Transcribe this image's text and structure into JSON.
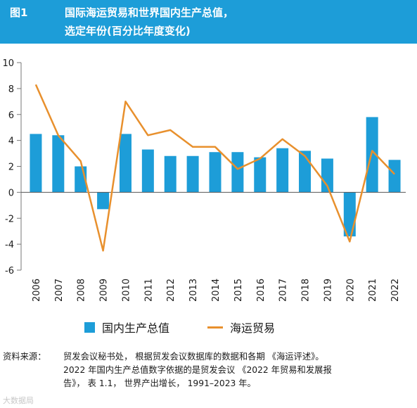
{
  "header": {
    "figure_label": "图1",
    "title_line1": "国际海运贸易和世界国内生产总值，",
    "title_line2": "选定年份(百分比年度变化)"
  },
  "colors": {
    "header_bg": "#1d9dd8",
    "bar": "#1d9dd8",
    "line": "#e8902d"
  },
  "chart_data": {
    "type": "bar",
    "categories": [
      "2006",
      "2007",
      "2008",
      "2009",
      "2010",
      "2011",
      "2012",
      "2013",
      "2014",
      "2015",
      "2016",
      "2017",
      "2018",
      "2019",
      "2020",
      "2021",
      "2022"
    ],
    "series": [
      {
        "name": "国内生产总值",
        "type": "bar",
        "values": [
          4.5,
          4.4,
          2.0,
          -1.3,
          4.5,
          3.3,
          2.8,
          2.8,
          3.1,
          3.1,
          2.7,
          3.4,
          3.2,
          2.6,
          -3.4,
          5.8,
          2.5
        ]
      },
      {
        "name": "海运贸易",
        "type": "line",
        "values": [
          8.3,
          4.4,
          2.4,
          -4.5,
          7.0,
          4.4,
          4.8,
          3.5,
          3.5,
          1.8,
          2.6,
          4.1,
          2.8,
          0.5,
          -3.8,
          3.2,
          1.4
        ]
      }
    ],
    "yticks": [
      "10",
      "8",
      "6",
      "4",
      "2",
      "0",
      "-2",
      "-4",
      "-6"
    ],
    "ylim": [
      -6,
      10
    ],
    "grid": false,
    "legend": "bottom"
  },
  "legend": {
    "gdp_label": "国内生产总值",
    "trade_label": "海运贸易"
  },
  "source": {
    "label": "资料来源：",
    "line1": "贸发会议秘书处， 根据贸发会议数据库的数据和各期 《海运评述》。",
    "line2": "2022 年国内生产总值数字依据的是贸发会议 《2022 年贸易和发展报",
    "line3": "告》， 表 1.1， 世界产出增长， 1991–2023 年。"
  },
  "watermark": "大数据局"
}
